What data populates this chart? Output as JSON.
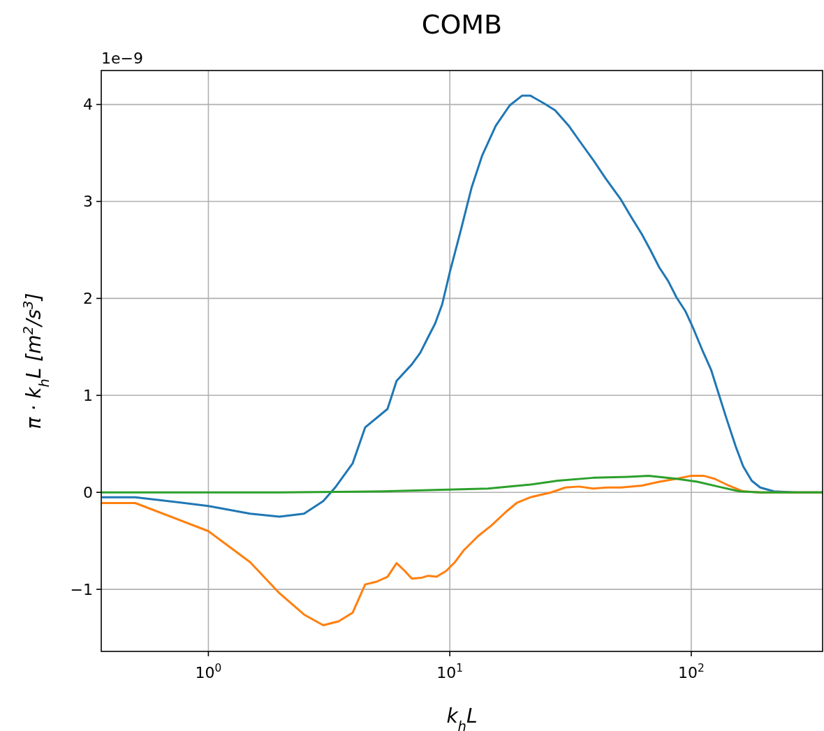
{
  "chart_data": {
    "type": "line",
    "title": "COMB",
    "xlabel": "k$_{h}$L",
    "ylabel": "π · k$_{h}$L [m$^{2}$/s$^{3}$]",
    "annotations": [
      "1e−9"
    ],
    "log": "x",
    "grid": true,
    "line_style": "solid",
    "marker": "none",
    "xlim": [
      0.36,
      350
    ],
    "xticks": [
      {
        "value": 1,
        "label": "10$^{0}$"
      },
      {
        "value": 10,
        "label": "10$^{1}$"
      },
      {
        "value": 100,
        "label": "10$^{2}$"
      }
    ],
    "ylim": [
      -1.64,
      4.35
    ],
    "yticks": [
      {
        "value": -1,
        "label": "−1"
      },
      0,
      1,
      2,
      3,
      4
    ],
    "series": [
      {
        "color": "#1f77b4",
        "x": [
          0.362,
          0.498,
          1,
          1.49,
          1.97,
          2.49,
          2.99,
          3.35,
          3.96,
          4.46,
          5.52,
          6.02,
          6.96,
          7.55,
          8.13,
          8.69,
          9.3,
          10,
          11.1,
          12.3,
          13.6,
          15.5,
          17.7,
          19.9,
          21.6,
          24.6,
          27.3,
          31.1,
          34.3,
          39.2,
          44.1,
          47.8,
          51.1,
          56.4,
          62.5,
          67.7,
          73.7,
          80.2,
          86.9,
          94.5,
          102,
          111,
          121,
          129,
          140,
          153,
          164,
          178,
          193,
          220,
          268,
          350
        ],
        "values": [
          -0.05,
          -0.05,
          -0.14,
          -0.22,
          -0.25,
          -0.22,
          -0.09,
          0.05,
          0.3,
          0.67,
          0.86,
          1.15,
          1.32,
          1.44,
          1.6,
          1.74,
          1.94,
          2.27,
          2.7,
          3.14,
          3.47,
          3.78,
          3.99,
          4.09,
          4.09,
          4.01,
          3.94,
          3.78,
          3.63,
          3.43,
          3.24,
          3.12,
          3.02,
          2.84,
          2.66,
          2.5,
          2.32,
          2.18,
          2.01,
          1.87,
          1.69,
          1.47,
          1.26,
          1.04,
          0.76,
          0.47,
          0.27,
          0.12,
          0.05,
          0.01,
          0,
          0
        ]
      },
      {
        "color": "#ff7f0e",
        "x": [
          0.362,
          0.498,
          1,
          1.49,
          1.97,
          2.49,
          2.99,
          3.46,
          3.96,
          4.46,
          4.99,
          5.52,
          6.02,
          6.51,
          6.96,
          7.66,
          8.13,
          8.82,
          9.66,
          10.5,
          11.4,
          13.1,
          14.9,
          17.1,
          18.9,
          21.6,
          26.3,
          30.1,
          34.3,
          39.2,
          44.8,
          51.1,
          62.5,
          73.7,
          86.9,
          99.3,
          113,
          125,
          143,
          164,
          193,
          350
        ],
        "values": [
          -0.11,
          -0.11,
          -0.4,
          -0.72,
          -1.04,
          -1.26,
          -1.37,
          -1.33,
          -1.24,
          -0.95,
          -0.92,
          -0.87,
          -0.73,
          -0.81,
          -0.89,
          -0.88,
          -0.86,
          -0.87,
          -0.81,
          -0.72,
          -0.6,
          -0.45,
          -0.34,
          -0.2,
          -0.11,
          -0.05,
          0,
          0.05,
          0.06,
          0.04,
          0.05,
          0.05,
          0.07,
          0.11,
          0.14,
          0.17,
          0.17,
          0.14,
          0.07,
          0.01,
          0,
          0
        ]
      },
      {
        "color": "#2ca02c",
        "x": [
          0.362,
          1.97,
          5.3,
          14.4,
          21.6,
          28,
          39.2,
          54.6,
          66.6,
          86.9,
          106,
          129,
          158,
          193,
          350
        ],
        "values": [
          0,
          0,
          0.01,
          0.04,
          0.08,
          0.12,
          0.15,
          0.16,
          0.17,
          0.14,
          0.11,
          0.06,
          0.01,
          0,
          0
        ]
      }
    ]
  }
}
